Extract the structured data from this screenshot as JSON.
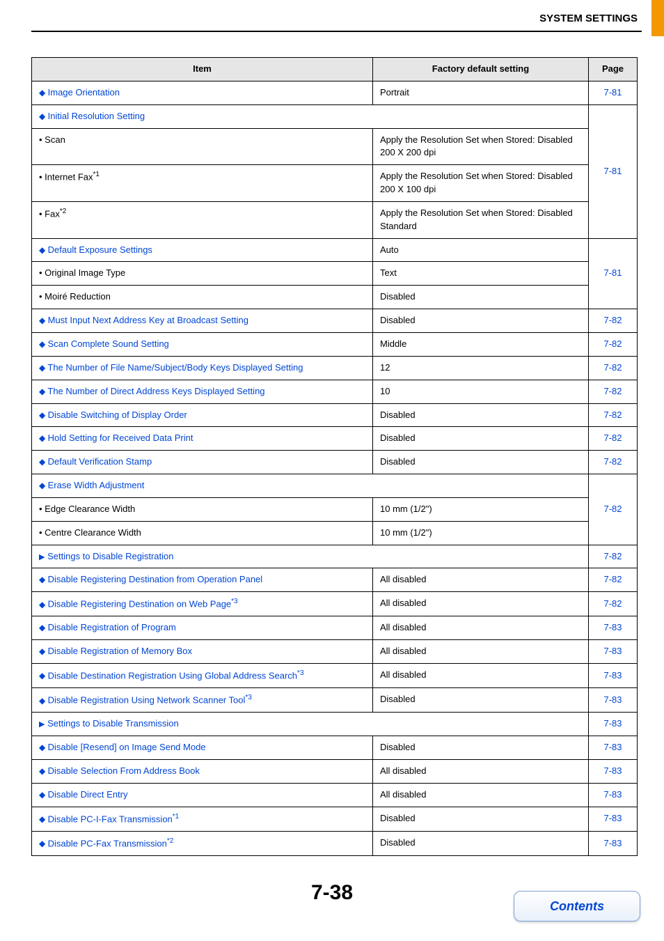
{
  "header": {
    "title": "SYSTEM SETTINGS"
  },
  "columns": {
    "item": "Item",
    "default": "Factory default setting",
    "page": "Page"
  },
  "links": {
    "image_orientation": "Image Orientation",
    "initial_resolution": "Initial Resolution Setting",
    "default_exposure": "Default Exposure Settings",
    "must_input": "Must Input Next Address Key at Broadcast Setting",
    "scan_complete": "Scan Complete Sound Setting",
    "num_file_keys": "The Number of File Name/Subject/Body Keys Displayed Setting",
    "num_direct_keys": "The Number of Direct Address Keys Displayed Setting",
    "disable_switching": "Disable Switching of Display Order",
    "hold_setting": "Hold Setting for Received Data Print",
    "default_verif": "Default Verification Stamp",
    "erase_width": "Erase Width Adjustment",
    "settings_disable_reg": "Settings to Disable Registration",
    "disable_reg_dest_panel": "Disable Registering Destination from Operation Panel",
    "disable_reg_dest_web": "Disable Registering Destination on Web Page",
    "disable_reg_program": "Disable Registration of Program",
    "disable_reg_mem": "Disable Registration of Memory Box",
    "disable_dest_global": "Disable Destination Registration Using Global Address Search",
    "disable_reg_nst": "Disable Registration Using Network Scanner Tool",
    "settings_disable_trans": "Settings to Disable Transmission",
    "disable_resend": "Disable [Resend] on Image Send Mode",
    "disable_sel_ab": "Disable Selection From Address Book",
    "disable_direct_entry": "Disable Direct Entry",
    "disable_pcifax": "Disable PC-I-Fax Transmission",
    "disable_pcfax": "Disable PC-Fax Transmission"
  },
  "sups": {
    "s1": "*1",
    "s2": "*2",
    "s3": "*3"
  },
  "plain": {
    "scan": "• Scan",
    "ifax": "• Internet Fax",
    "fax": "• Fax",
    "orig_image_type": "• Original Image Type",
    "moire": "• Moiré Reduction",
    "edge_clear": "• Edge Clearance Width",
    "centre_clear": "• Centre Clearance Width"
  },
  "defaults": {
    "portrait": "Portrait",
    "scan_def": "Apply the Resolution Set when Stored: Disabled\n200 X 200 dpi",
    "ifax_def": "Apply the Resolution Set when Stored: Disabled\n200 X 100 dpi",
    "fax_def": "Apply the Resolution Set when Stored: Disabled\nStandard",
    "auto": "Auto",
    "text": "Text",
    "disabled": "Disabled",
    "middle": "Middle",
    "twelve": "12",
    "ten": "10",
    "tenmm": "10 mm (1/2\")",
    "all_disabled": "All disabled"
  },
  "pages": {
    "p781": "7-81",
    "p782": "7-82",
    "p783": "7-83"
  },
  "footer": {
    "pagenum": "7-38",
    "contents": "Contents"
  },
  "style": {
    "link_color": "#0046d5",
    "accent_color": "#f39800",
    "header_bg": "#e6e6e6"
  }
}
